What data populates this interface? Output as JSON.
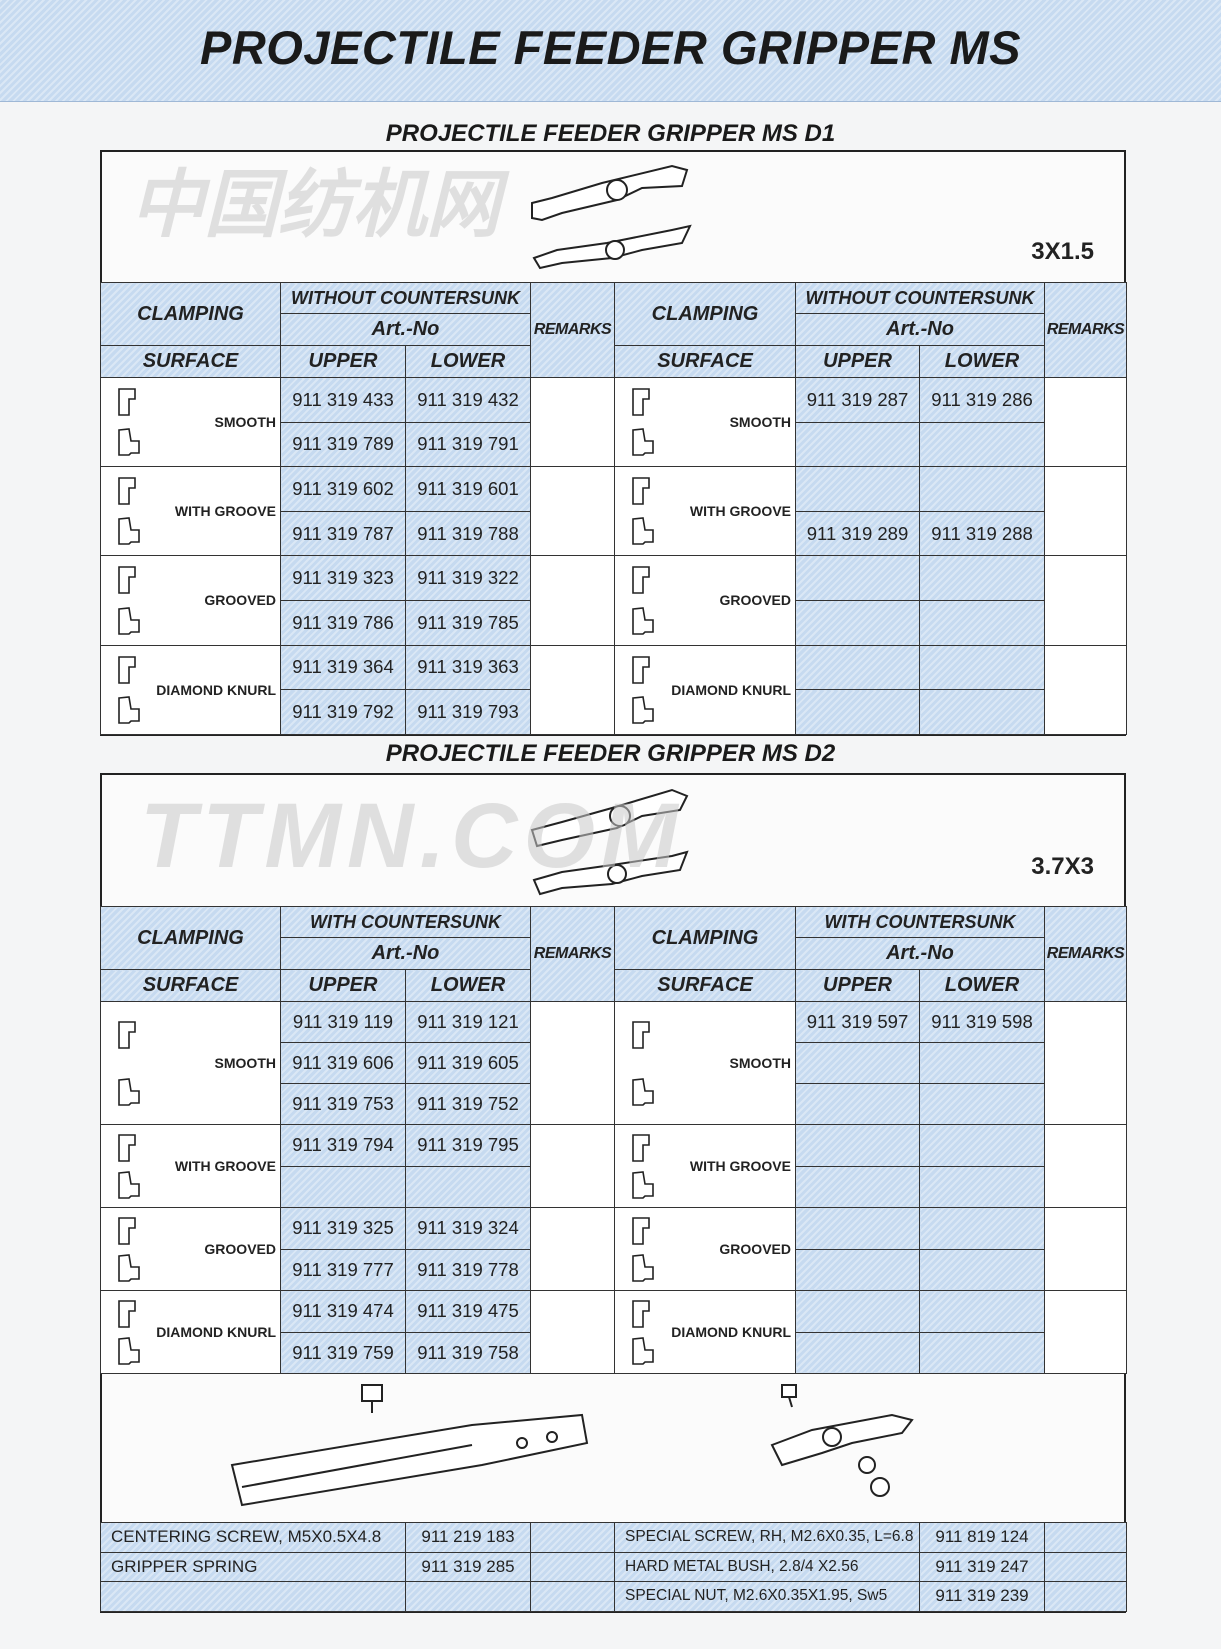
{
  "title": "PROJECTILE FEEDER GRIPPER MS",
  "headers": {
    "clamping": "CLAMPING",
    "surface": "SURFACE",
    "art_no": "Art.-No",
    "upper": "UPPER",
    "lower": "LOWER",
    "remarks": "REMARKS"
  },
  "d1": {
    "title": "PROJECTILE FEEDER GRIPPER MS D1",
    "size_label": "3X1.5",
    "left_variant": "WITHOUT COUNTERSUNK",
    "right_variant": "WITHOUT COUNTERSUNK",
    "groups": [
      {
        "surface": "SMOOTH",
        "left": [
          [
            "911 319 433",
            "911 319 432"
          ],
          [
            "911 319 789",
            "911 319 791"
          ]
        ],
        "right": [
          [
            "911 319 287",
            "911 319 286"
          ],
          [
            "",
            ""
          ]
        ]
      },
      {
        "surface": "WITH GROOVE",
        "left": [
          [
            "911 319 602",
            "911 319 601"
          ],
          [
            "911 319 787",
            "911 319 788"
          ]
        ],
        "right": [
          [
            "",
            ""
          ],
          [
            "911 319 289",
            "911 319 288"
          ]
        ]
      },
      {
        "surface": "GROOVED",
        "left": [
          [
            "911 319 323",
            "911 319 322"
          ],
          [
            "911 319 786",
            "911 319 785"
          ]
        ],
        "right": [
          [
            "",
            ""
          ],
          [
            "",
            ""
          ]
        ]
      },
      {
        "surface": "DIAMOND KNURL",
        "left": [
          [
            "911 319 364",
            "911 319 363"
          ],
          [
            "911 319 792",
            "911 319 793"
          ]
        ],
        "right": [
          [
            "",
            ""
          ],
          [
            "",
            ""
          ]
        ]
      }
    ]
  },
  "d2": {
    "title": "PROJECTILE FEEDER GRIPPER MS D2",
    "size_label": "3.7X3",
    "left_variant": "WITH COUNTERSUNK",
    "right_variant": "WITH COUNTERSUNK",
    "groups": [
      {
        "surface": "SMOOTH",
        "left": [
          [
            "911 319 119",
            "911 319 121"
          ],
          [
            "911 319 606",
            "911 319 605"
          ],
          [
            "911 319 753",
            "911 319 752"
          ]
        ],
        "right": [
          [
            "911 319 597",
            "911 319 598"
          ],
          [
            "",
            ""
          ],
          [
            "",
            ""
          ]
        ]
      },
      {
        "surface": "WITH GROOVE",
        "left": [
          [
            "911 319 794",
            "911 319 795"
          ],
          [
            "",
            ""
          ]
        ],
        "right": [
          [
            "",
            ""
          ],
          [
            "",
            ""
          ]
        ]
      },
      {
        "surface": "GROOVED",
        "left": [
          [
            "911 319 325",
            "911 319 324"
          ],
          [
            "911 319 777",
            "911 319 778"
          ]
        ],
        "right": [
          [
            "",
            ""
          ],
          [
            "",
            ""
          ]
        ]
      },
      {
        "surface": "DIAMOND KNURL",
        "left": [
          [
            "911 319 474",
            "911 319 475"
          ],
          [
            "911 319 759",
            "911 319 758"
          ]
        ],
        "right": [
          [
            "",
            ""
          ],
          [
            "",
            ""
          ]
        ]
      }
    ]
  },
  "parts": {
    "left": [
      {
        "description": "CENTERING SCREW, M5X0.5X4.8",
        "art_no": "911 219 183"
      },
      {
        "description": "GRIPPER SPRING",
        "art_no": "911 319 285"
      },
      {
        "description": "",
        "art_no": ""
      }
    ],
    "right": [
      {
        "description": "SPECIAL SCREW, RH, M2.6X0.35, L=6.8",
        "art_no": "911 819 124"
      },
      {
        "description": "HARD METAL BUSH, 2.8/4 X2.56",
        "art_no": "911 319 247"
      },
      {
        "description": "SPECIAL NUT, M2.6X0.35X1.95, Sw5",
        "art_no": "911 319 239"
      }
    ]
  },
  "watermark": {
    "latin": "TTMN.COM",
    "chinese": "中国纺机网"
  },
  "colors": {
    "cell_blue": "#c6daf0",
    "border": "#333333"
  }
}
